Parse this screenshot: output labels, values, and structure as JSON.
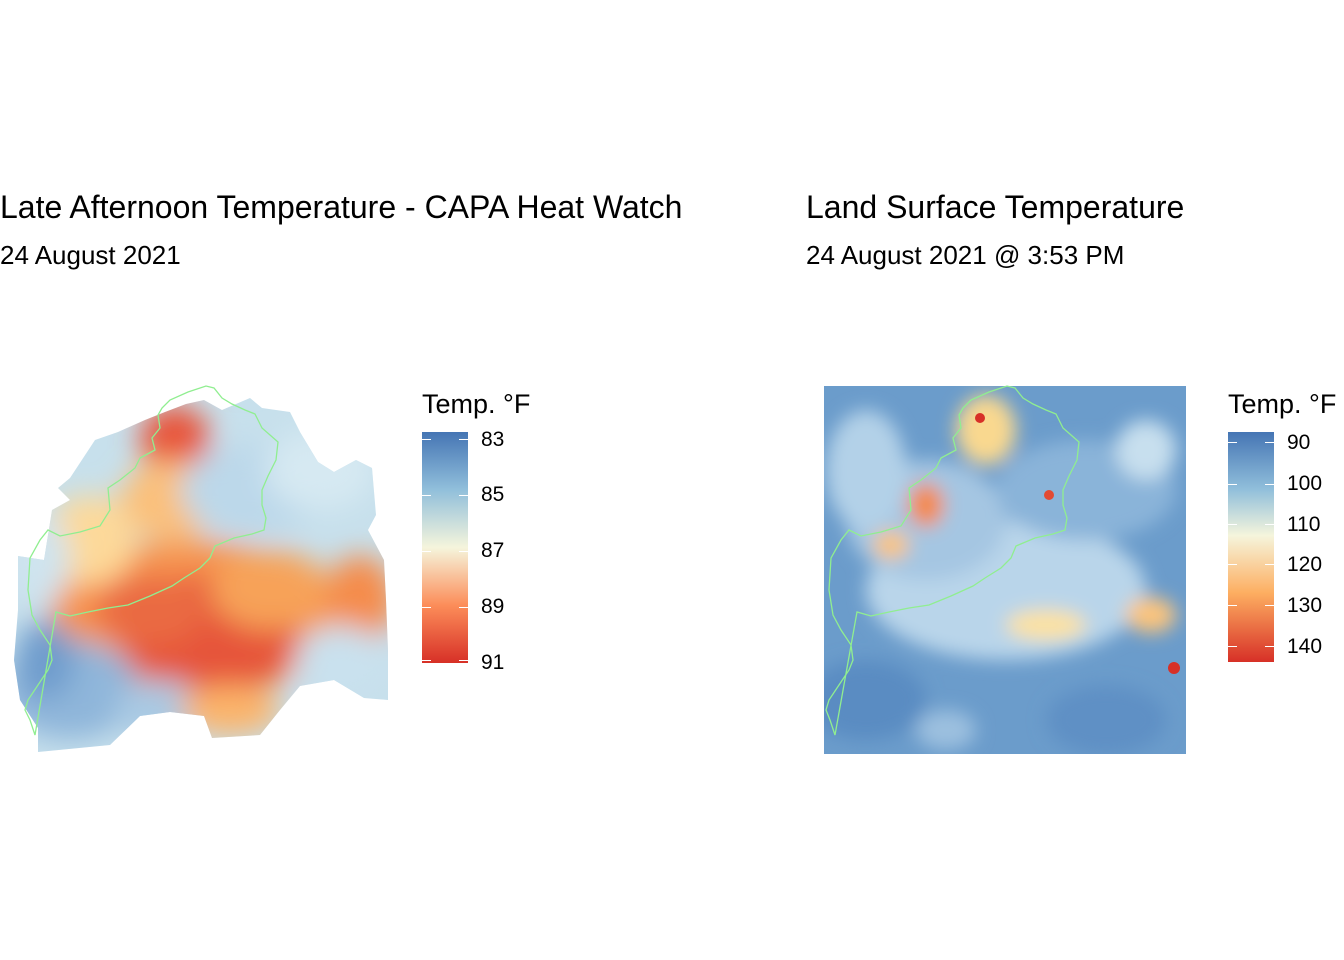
{
  "colors": {
    "scale_low": "#4575b4",
    "scale_mid": "#ffffbf",
    "scale_high": "#d73027",
    "boundary": "#90ee90",
    "background": "#ffffff"
  },
  "panels": [
    {
      "title": "Late Afternoon Temperature - CAPA Heat Watch",
      "subtitle": "24 August 2021",
      "legend": {
        "title": "Temp. °F",
        "ticks": [
          "83",
          "85",
          "87",
          "89",
          "91"
        ],
        "range": [
          83,
          91
        ]
      }
    },
    {
      "title": "Land Surface Temperature",
      "subtitle": "24 August 2021 @ 3:53 PM",
      "legend": {
        "title": "Temp. °F",
        "ticks": [
          "90",
          "100",
          "110",
          "120",
          "130",
          "140"
        ],
        "range": [
          86,
          146
        ]
      }
    }
  ]
}
